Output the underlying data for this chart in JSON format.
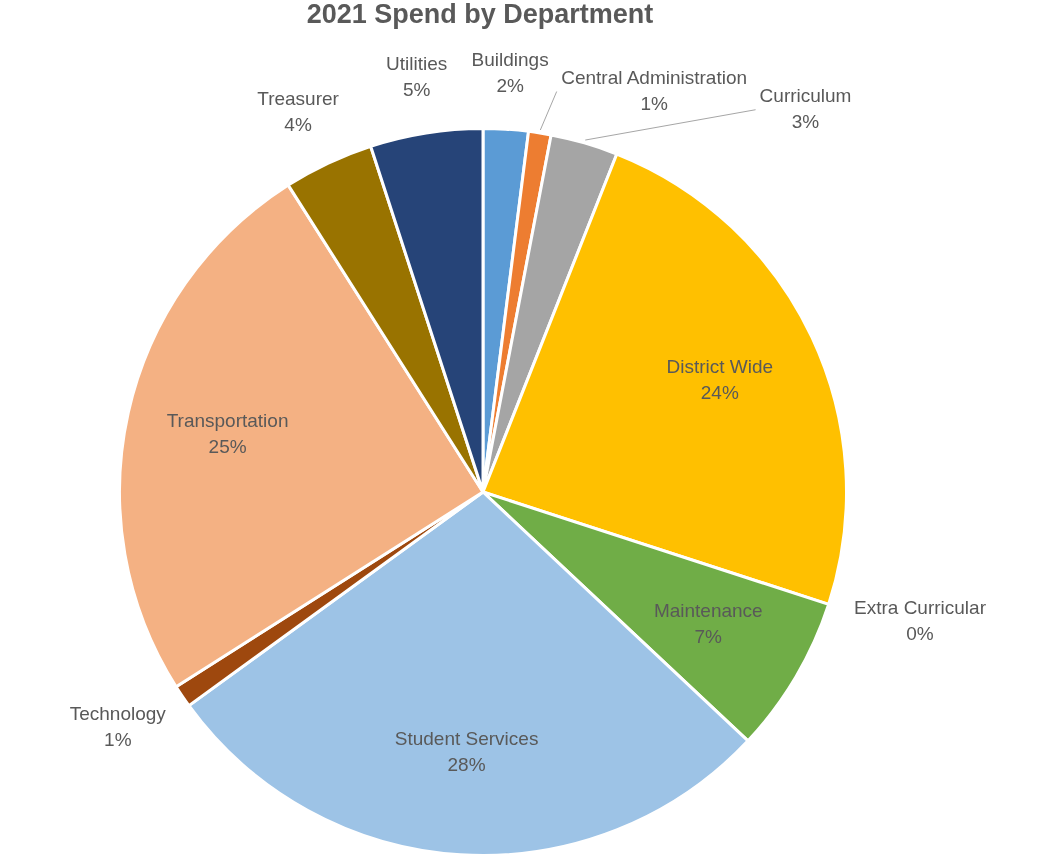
{
  "chart_data": {
    "type": "pie",
    "title": "2021 Spend by Department",
    "categories": [
      "Buildings",
      "Central Administration",
      "Curriculum",
      "District Wide",
      "Extra Curricular",
      "Maintenance",
      "Student Services",
      "Technology",
      "Transportation",
      "Treasurer",
      "Utilities"
    ],
    "values": [
      2,
      1,
      3,
      24,
      0,
      7,
      28,
      1,
      25,
      4,
      5
    ],
    "value_labels": [
      "2%",
      "1%",
      "3%",
      "24%",
      "0%",
      "7%",
      "28%",
      "1%",
      "25%",
      "4%",
      "5%"
    ],
    "colors": [
      "#5b9bd5",
      "#ed7d31",
      "#a5a5a5",
      "#ffc000",
      "#4472c4",
      "#70ad47",
      "#9dc3e6",
      "#9e480e",
      "#f4b183",
      "#997300",
      "#264478"
    ],
    "legend": false
  }
}
